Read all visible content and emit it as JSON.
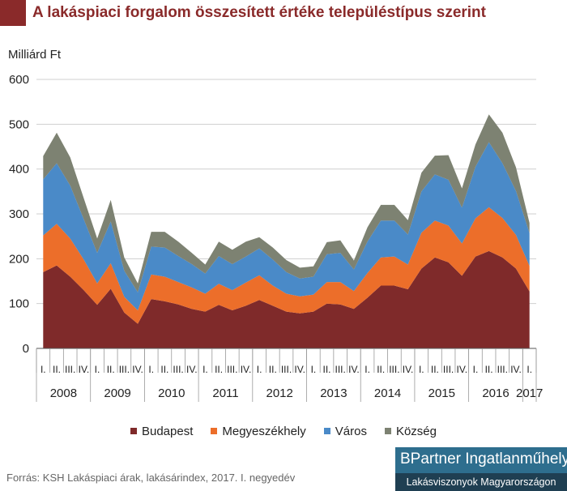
{
  "title": "A lakáspiaci forgalom összesített értéke településtípus szerint",
  "source": "Forrás: KSH Lakáspiaci árak, lakásárindex, 2017. I. negyedév",
  "brand": {
    "name": "BPartner Ingatlanműhely",
    "subtitle": "Lakásviszonyok Magyarországon"
  },
  "chart_data": {
    "type": "area",
    "stacked": true,
    "ylabel": "Milliárd Ft",
    "ylim": [
      0,
      600
    ],
    "yticks": [
      "0",
      "100",
      "200",
      "300",
      "400",
      "500",
      "600"
    ],
    "grid": true,
    "legend_position": "bottom",
    "quarter_labels": [
      "I.",
      "II.",
      "III.",
      "IV.",
      "I.",
      "II.",
      "III.",
      "IV.",
      "I.",
      "II.",
      "III.",
      "IV.",
      "I.",
      "II.",
      "III.",
      "IV.",
      "I.",
      "II.",
      "III.",
      "IV.",
      "I.",
      "II.",
      "III.",
      "IV.",
      "I.",
      "II.",
      "III.",
      "IV.",
      "I.",
      "II.",
      "III.",
      "IV.",
      "I.",
      "II.",
      "III.",
      "IV.",
      "I."
    ],
    "years": [
      {
        "label": "2008",
        "quarters": 4
      },
      {
        "label": "2009",
        "quarters": 4
      },
      {
        "label": "2010",
        "quarters": 4
      },
      {
        "label": "2011",
        "quarters": 4
      },
      {
        "label": "2012",
        "quarters": 4
      },
      {
        "label": "2013",
        "quarters": 4
      },
      {
        "label": "2014",
        "quarters": 4
      },
      {
        "label": "2015",
        "quarters": 4
      },
      {
        "label": "2016",
        "quarters": 4
      },
      {
        "label": "2017",
        "quarters": 1
      }
    ],
    "series": [
      {
        "name": "Budapest",
        "color": "#7f2a2a",
        "values": [
          170,
          185,
          160,
          130,
          97,
          133,
          80,
          55,
          110,
          105,
          98,
          88,
          82,
          97,
          85,
          95,
          108,
          95,
          82,
          78,
          82,
          100,
          98,
          88,
          113,
          140,
          140,
          132,
          178,
          203,
          192,
          162,
          205,
          217,
          203,
          178,
          127
        ]
      },
      {
        "name": "Megyeszékhely",
        "color": "#ec6e2a",
        "values": [
          82,
          93,
          85,
          68,
          48,
          57,
          35,
          30,
          55,
          55,
          50,
          48,
          40,
          47,
          45,
          52,
          55,
          45,
          40,
          38,
          38,
          48,
          50,
          40,
          55,
          63,
          65,
          55,
          80,
          82,
          82,
          72,
          85,
          98,
          88,
          75,
          57
        ]
      },
      {
        "name": "Város",
        "color": "#4a8ac8",
        "values": [
          125,
          135,
          118,
          90,
          68,
          93,
          58,
          40,
          62,
          65,
          58,
          52,
          45,
          62,
          58,
          58,
          60,
          58,
          48,
          40,
          40,
          62,
          65,
          48,
          70,
          82,
          80,
          67,
          92,
          103,
          102,
          80,
          115,
          145,
          122,
          98,
          73
        ]
      },
      {
        "name": "Község",
        "color": "#7d8272",
        "values": [
          52,
          68,
          63,
          47,
          32,
          48,
          30,
          20,
          33,
          35,
          32,
          25,
          20,
          32,
          32,
          33,
          25,
          27,
          27,
          24,
          23,
          27,
          28,
          20,
          32,
          35,
          35,
          32,
          42,
          42,
          55,
          43,
          50,
          62,
          68,
          53,
          23
        ]
      }
    ]
  }
}
